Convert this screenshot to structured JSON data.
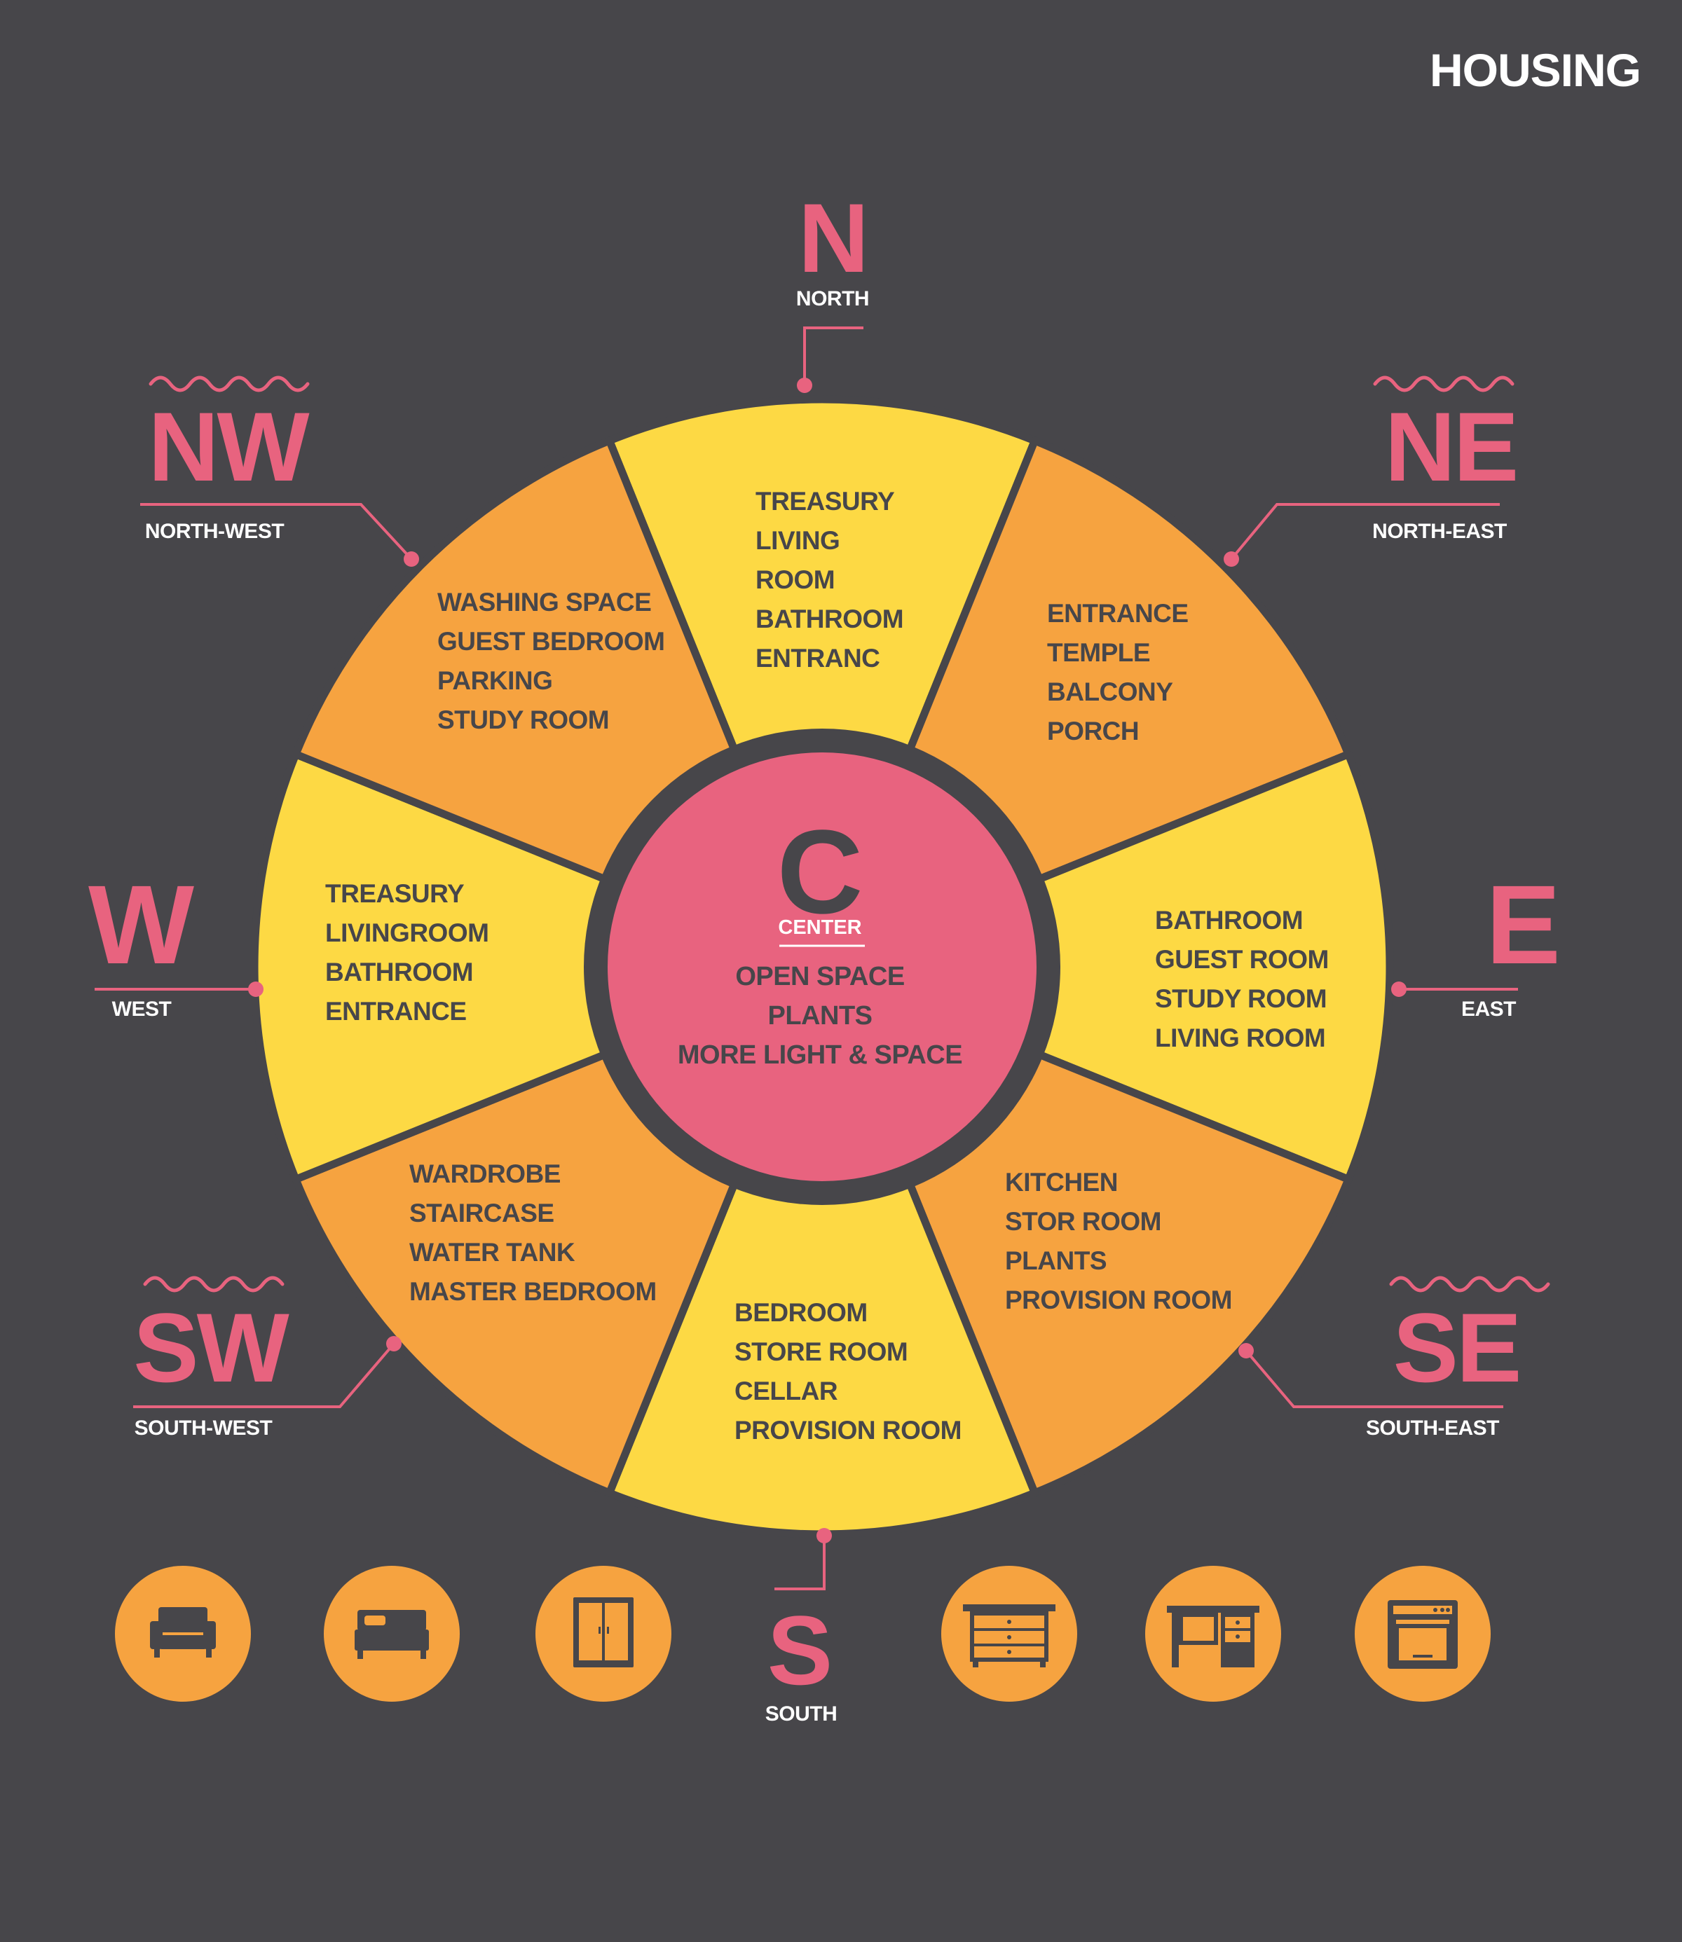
{
  "brand": "HOUSING",
  "colors": {
    "background": "#47464a",
    "orange": "#f6a340",
    "yellow": "#fdd944",
    "pink": "#e8637f",
    "text_dark": "#47464a"
  },
  "center": {
    "letter": "C",
    "label": "CENTER",
    "items": [
      "OPEN SPACE",
      "PLANTS",
      "MORE LIGHT & SPACE"
    ]
  },
  "directions": {
    "n": {
      "abbr": "N",
      "name": "NORTH"
    },
    "ne": {
      "abbr": "NE",
      "name": "NORTH-EAST"
    },
    "e": {
      "abbr": "E",
      "name": "EAST"
    },
    "se": {
      "abbr": "SE",
      "name": "SOUTH-EAST"
    },
    "s": {
      "abbr": "S",
      "name": "SOUTH"
    },
    "sw": {
      "abbr": "SW",
      "name": "SOUTH-WEST"
    },
    "w": {
      "abbr": "W",
      "name": "WEST"
    },
    "nw": {
      "abbr": "NW",
      "name": "NORTH-WEST"
    }
  },
  "sectors": {
    "n": [
      "TREASURY",
      "LIVING",
      "ROOM",
      "BATHROOM",
      "ENTRANC"
    ],
    "ne": [
      "ENTRANCE",
      "TEMPLE",
      "BALCONY",
      "PORCH"
    ],
    "e": [
      "BATHROOM",
      "GUEST ROOM",
      "STUDY ROOM",
      "LIVING ROOM"
    ],
    "se": [
      "KITCHEN",
      "STOR ROOM",
      "PLANTS",
      "PROVISION ROOM"
    ],
    "s": [
      "BEDROOM",
      "STORE ROOM",
      "CELLAR",
      "PROVISION ROOM"
    ],
    "sw": [
      "WARDROBE",
      "STAIRCASE",
      "WATER TANK",
      "MASTER BEDROOM"
    ],
    "w": [
      "TREASURY",
      "LIVINGROOM",
      "BATHROOM",
      "ENTRANCE"
    ],
    "nw": [
      "WASHING SPACE",
      "GUEST BEDROOM",
      "PARKING",
      "STUDY ROOM"
    ]
  },
  "icons": [
    "armchair-icon",
    "bed-icon",
    "wardrobe-icon",
    "dresser-icon",
    "desk-icon",
    "oven-icon"
  ]
}
